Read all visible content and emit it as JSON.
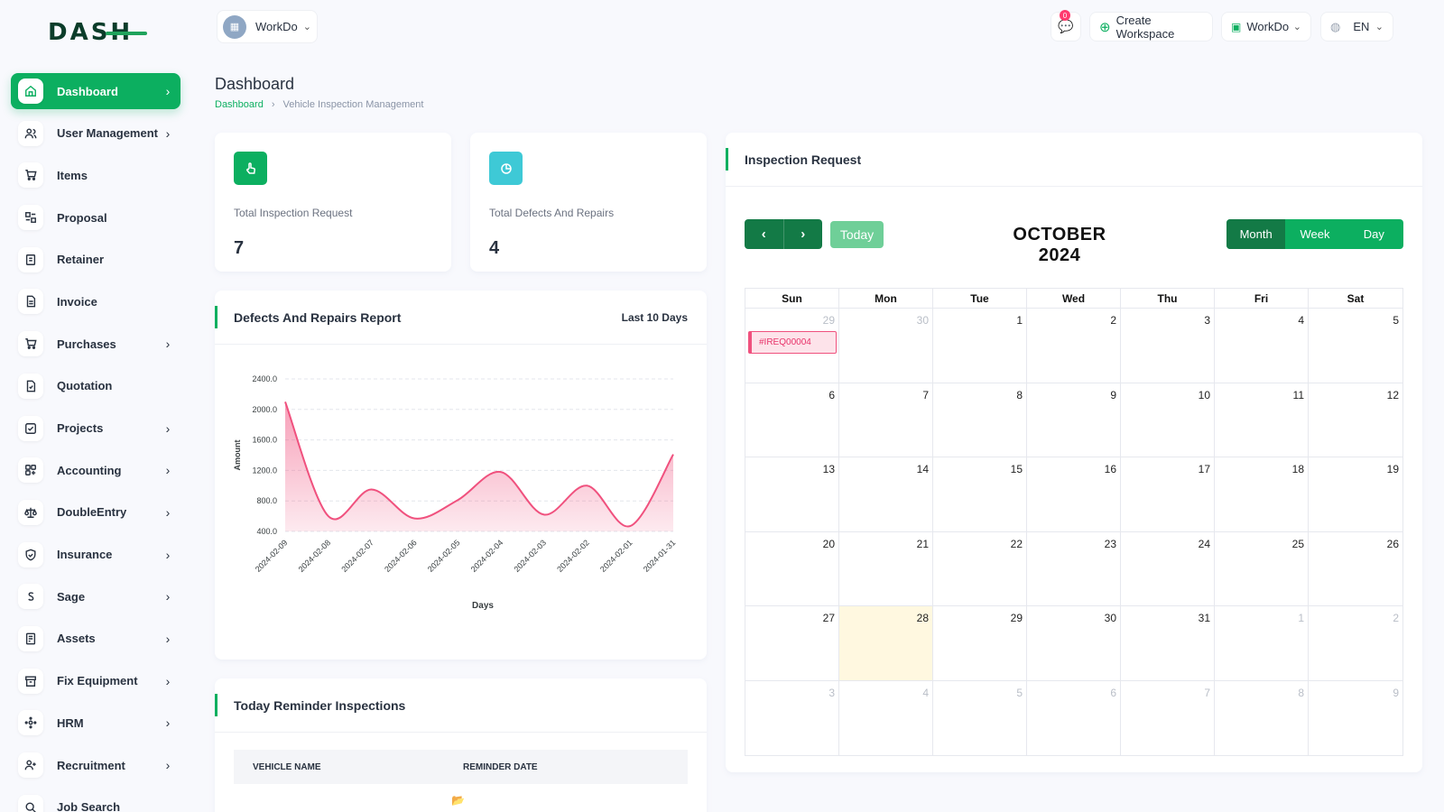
{
  "brand": {
    "logo_text": "DASH"
  },
  "sidebar": {
    "items": [
      {
        "label": "Dashboard",
        "icon": "home-icon",
        "has_chevron": true,
        "active": true
      },
      {
        "label": "User Management",
        "icon": "users-icon",
        "has_chevron": true
      },
      {
        "label": "Items",
        "icon": "cart-icon",
        "has_chevron": false
      },
      {
        "label": "Proposal",
        "icon": "proposal-icon",
        "has_chevron": false
      },
      {
        "label": "Retainer",
        "icon": "retainer-icon",
        "has_chevron": false
      },
      {
        "label": "Invoice",
        "icon": "invoice-icon",
        "has_chevron": false
      },
      {
        "label": "Purchases",
        "icon": "cart-icon",
        "has_chevron": true
      },
      {
        "label": "Quotation",
        "icon": "quotation-icon",
        "has_chevron": false
      },
      {
        "label": "Projects",
        "icon": "projects-icon",
        "has_chevron": true
      },
      {
        "label": "Accounting",
        "icon": "accounting-icon",
        "has_chevron": true
      },
      {
        "label": "DoubleEntry",
        "icon": "scale-icon",
        "has_chevron": true
      },
      {
        "label": "Insurance",
        "icon": "shield-icon",
        "has_chevron": true
      },
      {
        "label": "Sage",
        "icon": "sage-icon",
        "has_chevron": true
      },
      {
        "label": "Assets",
        "icon": "assets-icon",
        "has_chevron": true
      },
      {
        "label": "Fix Equipment",
        "icon": "archive-icon",
        "has_chevron": true
      },
      {
        "label": "HRM",
        "icon": "hrm-icon",
        "has_chevron": true
      },
      {
        "label": "Recruitment",
        "icon": "user-plus-icon",
        "has_chevron": true
      },
      {
        "label": "Job Search",
        "icon": "search-icon",
        "has_chevron": false
      }
    ]
  },
  "header": {
    "workspace_name": "WorkDo",
    "notification_count": "0",
    "create_workspace_label": "Create Workspace",
    "company_label": "WorkDo",
    "language_label": "EN"
  },
  "page": {
    "title": "Dashboard",
    "breadcrumb": [
      "Dashboard",
      "Vehicle Inspection Management"
    ]
  },
  "stats": [
    {
      "label": "Total Inspection Request",
      "value": "7",
      "icon": "hand-pointer-icon",
      "color": "#0caf60"
    },
    {
      "label": "Total Defects And Repairs",
      "value": "4",
      "icon": "pie-chart-icon",
      "color": "#3ec9d6"
    }
  ],
  "report": {
    "title": "Defects And Repairs Report",
    "range_label": "Last 10 Days"
  },
  "chart_data": {
    "type": "area",
    "x": [
      "2024-02-09",
      "2024-02-08",
      "2024-02-07",
      "2024-02-06",
      "2024-02-05",
      "2024-02-04",
      "2024-02-03",
      "2024-02-02",
      "2024-02-01",
      "2024-01-31"
    ],
    "series": [
      {
        "values": [
          2100,
          600,
          950,
          570,
          810,
          1180,
          620,
          1000,
          470,
          1410
        ]
      }
    ],
    "xlabel": "Days",
    "ylabel": "Amount",
    "yticks": [
      "2400.0",
      "2000.0",
      "1600.0",
      "1200.0",
      "800.0",
      "400.0"
    ],
    "ylim": [
      400,
      2400
    ],
    "color": "#f0517e",
    "grid": true
  },
  "reminders": {
    "title": "Today Reminder Inspections",
    "columns": [
      "VEHICLE NAME",
      "REMINDER DATE"
    ]
  },
  "calendar": {
    "panel_title": "Inspection Request",
    "month_title": "OCTOBER 2024",
    "today_label": "Today",
    "views": [
      "Month",
      "Week",
      "Day"
    ],
    "active_view": "Month",
    "days_of_week": [
      "Sun",
      "Mon",
      "Tue",
      "Wed",
      "Thu",
      "Fri",
      "Sat"
    ],
    "weeks": [
      [
        "29",
        "30",
        "1",
        "2",
        "3",
        "4",
        "5"
      ],
      [
        "6",
        "7",
        "8",
        "9",
        "10",
        "11",
        "12"
      ],
      [
        "13",
        "14",
        "15",
        "16",
        "17",
        "18",
        "19"
      ],
      [
        "20",
        "21",
        "22",
        "23",
        "24",
        "25",
        "26"
      ],
      [
        "27",
        "28",
        "29",
        "30",
        "31",
        "1",
        "2"
      ],
      [
        "3",
        "4",
        "5",
        "6",
        "7",
        "8",
        "9"
      ]
    ],
    "event_label": "#IREQ00004",
    "today_date": "28"
  }
}
